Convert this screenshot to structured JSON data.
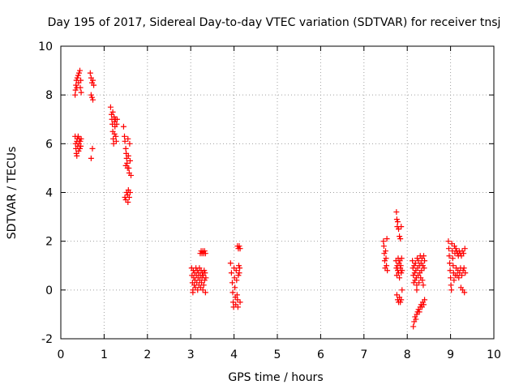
{
  "chart_data": {
    "type": "scatter",
    "title": "Day 195 of 2017, Sidereal Day-to-day VTEC variation (SDTVAR) for receiver tnsj",
    "xlabel": "GPS time / hours",
    "ylabel": "SDTVAR / TECUs",
    "xlim": [
      0,
      10
    ],
    "ylim": [
      -2,
      10
    ],
    "xticks": [
      0,
      1,
      2,
      3,
      4,
      5,
      6,
      7,
      8,
      9,
      10
    ],
    "yticks": [
      -2,
      0,
      2,
      4,
      6,
      8,
      10
    ],
    "grid": true,
    "marker": "plus",
    "marker_color": "#ff0000",
    "series": [
      {
        "name": "SDTVAR",
        "points": [
          [
            0.33,
            8.0
          ],
          [
            0.34,
            8.2
          ],
          [
            0.35,
            8.4
          ],
          [
            0.36,
            8.6
          ],
          [
            0.37,
            8.3
          ],
          [
            0.38,
            8.7
          ],
          [
            0.4,
            8.8
          ],
          [
            0.41,
            8.5
          ],
          [
            0.42,
            8.9
          ],
          [
            0.44,
            9.0
          ],
          [
            0.45,
            8.3
          ],
          [
            0.46,
            8.6
          ],
          [
            0.47,
            8.1
          ],
          [
            0.33,
            6.3
          ],
          [
            0.34,
            6.0
          ],
          [
            0.35,
            5.8
          ],
          [
            0.36,
            5.6
          ],
          [
            0.37,
            6.1
          ],
          [
            0.38,
            6.2
          ],
          [
            0.39,
            5.9
          ],
          [
            0.4,
            6.3
          ],
          [
            0.41,
            5.7
          ],
          [
            0.42,
            6.0
          ],
          [
            0.43,
            6.2
          ],
          [
            0.44,
            5.8
          ],
          [
            0.45,
            6.1
          ],
          [
            0.46,
            5.9
          ],
          [
            0.47,
            6.2
          ],
          [
            0.37,
            5.5
          ],
          [
            0.68,
            8.9
          ],
          [
            0.7,
            8.7
          ],
          [
            0.72,
            8.5
          ],
          [
            0.74,
            8.6
          ],
          [
            0.76,
            8.4
          ],
          [
            0.7,
            8.0
          ],
          [
            0.72,
            7.9
          ],
          [
            0.74,
            7.8
          ],
          [
            0.7,
            5.4
          ],
          [
            0.73,
            5.8
          ],
          [
            1.15,
            7.5
          ],
          [
            1.17,
            7.2
          ],
          [
            1.18,
            7.0
          ],
          [
            1.19,
            6.8
          ],
          [
            1.2,
            6.5
          ],
          [
            1.21,
            6.2
          ],
          [
            1.22,
            6.0
          ],
          [
            1.23,
            7.1
          ],
          [
            1.24,
            6.9
          ],
          [
            1.25,
            6.7
          ],
          [
            1.26,
            7.0
          ],
          [
            1.27,
            6.3
          ],
          [
            1.28,
            6.1
          ],
          [
            1.29,
            6.8
          ],
          [
            1.3,
            7.0
          ],
          [
            1.2,
            7.3
          ],
          [
            1.24,
            6.4
          ],
          [
            1.45,
            6.7
          ],
          [
            1.47,
            6.3
          ],
          [
            1.48,
            6.1
          ],
          [
            1.5,
            5.8
          ],
          [
            1.51,
            5.6
          ],
          [
            1.52,
            5.4
          ],
          [
            1.53,
            5.2
          ],
          [
            1.54,
            5.0
          ],
          [
            1.55,
            6.2
          ],
          [
            1.56,
            5.5
          ],
          [
            1.57,
            5.0
          ],
          [
            1.58,
            4.8
          ],
          [
            1.59,
            6.0
          ],
          [
            1.6,
            5.3
          ],
          [
            1.62,
            4.7
          ],
          [
            1.5,
            5.1
          ],
          [
            1.48,
            3.8
          ],
          [
            1.5,
            3.7
          ],
          [
            1.52,
            4.0
          ],
          [
            1.54,
            3.9
          ],
          [
            1.56,
            4.1
          ],
          [
            1.58,
            3.8
          ],
          [
            1.6,
            4.0
          ],
          [
            1.55,
            3.6
          ],
          [
            3.02,
            0.9
          ],
          [
            3.03,
            0.6
          ],
          [
            3.04,
            0.3
          ],
          [
            3.05,
            0.0
          ],
          [
            3.06,
            0.8
          ],
          [
            3.07,
            0.5
          ],
          [
            3.08,
            0.2
          ],
          [
            3.09,
            0.7
          ],
          [
            3.1,
            0.4
          ],
          [
            3.11,
            0.1
          ],
          [
            3.12,
            0.9
          ],
          [
            3.13,
            0.6
          ],
          [
            3.14,
            0.3
          ],
          [
            3.15,
            0.8
          ],
          [
            3.16,
            0.0
          ],
          [
            3.17,
            0.5
          ],
          [
            3.18,
            0.7
          ],
          [
            3.19,
            0.2
          ],
          [
            3.2,
            0.9
          ],
          [
            3.21,
            0.4
          ],
          [
            3.22,
            0.6
          ],
          [
            3.23,
            0.1
          ],
          [
            3.24,
            0.8
          ],
          [
            3.25,
            0.3
          ],
          [
            3.26,
            0.5
          ],
          [
            3.27,
            0.7
          ],
          [
            3.28,
            0.0
          ],
          [
            3.29,
            0.6
          ],
          [
            3.3,
            0.2
          ],
          [
            3.31,
            0.8
          ],
          [
            3.32,
            0.4
          ],
          [
            3.33,
            0.7
          ],
          [
            3.34,
            -0.1
          ],
          [
            3.05,
            -0.1
          ],
          [
            3.35,
            0.5
          ],
          [
            3.22,
            1.5
          ],
          [
            3.24,
            1.6
          ],
          [
            3.26,
            1.5
          ],
          [
            3.28,
            1.6
          ],
          [
            3.3,
            1.5
          ],
          [
            3.32,
            1.6
          ],
          [
            3.34,
            1.5
          ],
          [
            3.92,
            1.1
          ],
          [
            3.94,
            0.7
          ],
          [
            3.96,
            0.3
          ],
          [
            3.97,
            -0.1
          ],
          [
            3.98,
            -0.5
          ],
          [
            3.99,
            -0.7
          ],
          [
            4.0,
            0.9
          ],
          [
            4.01,
            0.5
          ],
          [
            4.02,
            0.1
          ],
          [
            4.03,
            -0.3
          ],
          [
            4.04,
            -0.6
          ],
          [
            4.05,
            0.8
          ],
          [
            4.06,
            0.4
          ],
          [
            4.07,
            -0.2
          ],
          [
            4.08,
            -0.4
          ],
          [
            4.09,
            -0.7
          ],
          [
            4.1,
            0.6
          ],
          [
            4.11,
            1.0
          ],
          [
            4.12,
            0.7
          ],
          [
            4.13,
            0.9
          ],
          [
            4.14,
            -0.5
          ],
          [
            4.08,
            1.8
          ],
          [
            4.1,
            1.7
          ],
          [
            4.12,
            1.8
          ],
          [
            4.14,
            1.7
          ],
          [
            7.45,
            2.0
          ],
          [
            7.46,
            1.8
          ],
          [
            7.47,
            1.5
          ],
          [
            7.48,
            1.2
          ],
          [
            7.49,
            0.9
          ],
          [
            7.5,
            1.6
          ],
          [
            7.51,
            1.3
          ],
          [
            7.52,
            1.0
          ],
          [
            7.53,
            2.1
          ],
          [
            7.54,
            0.8
          ],
          [
            7.75,
            3.2
          ],
          [
            7.76,
            2.9
          ],
          [
            7.77,
            2.6
          ],
          [
            7.78,
            2.8
          ],
          [
            7.8,
            2.5
          ],
          [
            7.82,
            2.2
          ],
          [
            7.84,
            2.1
          ],
          [
            7.86,
            2.6
          ],
          [
            7.74,
            1.2
          ],
          [
            7.75,
            0.9
          ],
          [
            7.76,
            0.6
          ],
          [
            7.77,
            1.0
          ],
          [
            7.78,
            0.8
          ],
          [
            7.79,
            1.3
          ],
          [
            7.8,
            0.7
          ],
          [
            7.81,
            1.1
          ],
          [
            7.82,
            0.5
          ],
          [
            7.83,
            1.2
          ],
          [
            7.84,
            0.9
          ],
          [
            7.85,
            1.0
          ],
          [
            7.86,
            0.7
          ],
          [
            7.87,
            1.3
          ],
          [
            7.88,
            0.8
          ],
          [
            7.76,
            -0.2
          ],
          [
            7.78,
            -0.4
          ],
          [
            7.8,
            -0.5
          ],
          [
            7.82,
            -0.3
          ],
          [
            7.84,
            -0.5
          ],
          [
            7.86,
            -0.4
          ],
          [
            7.88,
            0.0
          ],
          [
            8.12,
            1.2
          ],
          [
            8.13,
            0.9
          ],
          [
            8.14,
            0.6
          ],
          [
            8.15,
            0.3
          ],
          [
            8.16,
            1.0
          ],
          [
            8.17,
            0.7
          ],
          [
            8.18,
            0.4
          ],
          [
            8.19,
            1.1
          ],
          [
            8.2,
            0.8
          ],
          [
            8.21,
            0.5
          ],
          [
            8.22,
            0.2
          ],
          [
            8.23,
            1.3
          ],
          [
            8.24,
            0.9
          ],
          [
            8.25,
            0.6
          ],
          [
            8.26,
            1.2
          ],
          [
            8.27,
            0.3
          ],
          [
            8.28,
            1.0
          ],
          [
            8.29,
            0.7
          ],
          [
            8.3,
            1.4
          ],
          [
            8.31,
            0.5
          ],
          [
            8.32,
            1.1
          ],
          [
            8.33,
            0.8
          ],
          [
            8.34,
            1.3
          ],
          [
            8.35,
            0.4
          ],
          [
            8.36,
            1.0
          ],
          [
            8.37,
            0.2
          ],
          [
            8.38,
            1.4
          ],
          [
            8.39,
            0.9
          ],
          [
            8.4,
            1.2
          ],
          [
            8.22,
            0.0
          ],
          [
            8.14,
            -1.5
          ],
          [
            8.16,
            -1.3
          ],
          [
            8.18,
            -1.1
          ],
          [
            8.2,
            -1.2
          ],
          [
            8.22,
            -1.0
          ],
          [
            8.24,
            -0.9
          ],
          [
            8.26,
            -0.8
          ],
          [
            8.28,
            -0.9
          ],
          [
            8.3,
            -0.7
          ],
          [
            8.32,
            -0.6
          ],
          [
            8.34,
            -0.7
          ],
          [
            8.36,
            -0.5
          ],
          [
            8.38,
            -0.6
          ],
          [
            8.4,
            -0.4
          ],
          [
            8.95,
            2.0
          ],
          [
            8.96,
            1.7
          ],
          [
            8.97,
            1.4
          ],
          [
            8.98,
            1.1
          ],
          [
            8.99,
            0.8
          ],
          [
            9.0,
            0.5
          ],
          [
            9.01,
            0.2
          ],
          [
            9.02,
            0.0
          ],
          [
            9.03,
            1.9
          ],
          [
            9.04,
            1.6
          ],
          [
            9.05,
            1.3
          ],
          [
            9.06,
            1.0
          ],
          [
            9.07,
            0.7
          ],
          [
            9.08,
            0.4
          ],
          [
            9.09,
            1.8
          ],
          [
            9.1,
            1.5
          ],
          [
            9.11,
            0.6
          ],
          [
            9.12,
            1.7
          ],
          [
            9.13,
            0.9
          ],
          [
            9.14,
            1.6
          ],
          [
            9.15,
            0.6
          ],
          [
            9.16,
            1.5
          ],
          [
            9.17,
            0.8
          ],
          [
            9.18,
            1.4
          ],
          [
            9.19,
            0.5
          ],
          [
            9.2,
            1.6
          ],
          [
            9.21,
            0.7
          ],
          [
            9.22,
            1.5
          ],
          [
            9.23,
            0.9
          ],
          [
            9.24,
            0.1
          ],
          [
            9.25,
            1.4
          ],
          [
            9.26,
            0.6
          ],
          [
            9.27,
            1.6
          ],
          [
            9.28,
            0.0
          ],
          [
            9.29,
            0.8
          ],
          [
            9.3,
            1.5
          ],
          [
            9.31,
            0.9
          ],
          [
            9.32,
            -0.1
          ],
          [
            9.33,
            1.7
          ],
          [
            9.34,
            0.7
          ]
        ]
      }
    ]
  }
}
